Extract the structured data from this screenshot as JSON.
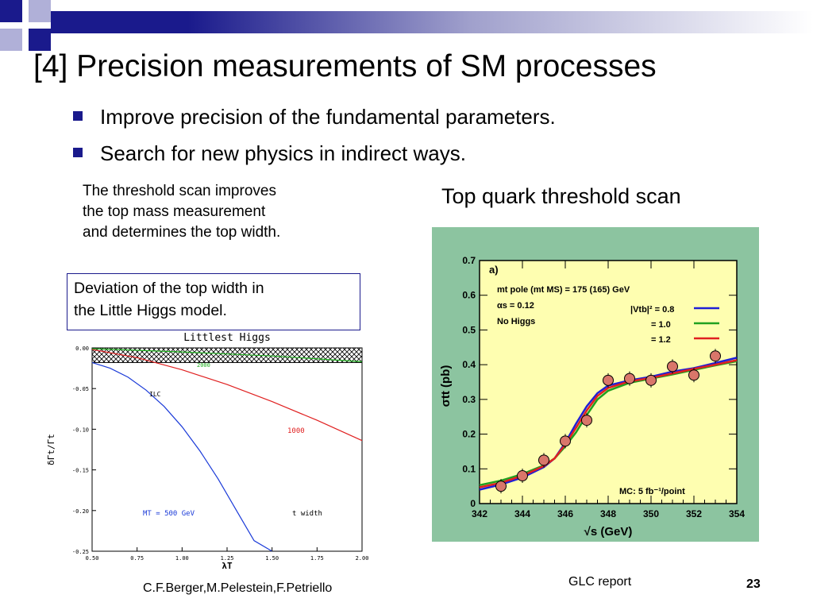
{
  "slide": {
    "title": "[4] Precision measurements of SM processes",
    "bullets": [
      "Improve precision of the fundamental parameters.",
      "Search for new physics in indirect ways."
    ],
    "description_lines": [
      "The threshold scan improves",
      "the top mass measurement",
      "and determines the top width."
    ],
    "box_lines": [
      "Deviation of the top width in",
      "the Little Higgs model."
    ],
    "right_plot_title": "Top quark threshold scan",
    "footer": {
      "authors": "C.F.Berger,M.Pelestein,F.Petriello",
      "report": "GLC report",
      "page": "23"
    },
    "colors": {
      "accent": "#1a1a8c",
      "plot_bg": "#fefeb0",
      "plot_frame": "#8cc4a0"
    }
  },
  "chart_data": [
    {
      "type": "line",
      "title": "Littlest Higgs",
      "ylabel": "δΓt/Γt",
      "xlabel": "λT",
      "xlim": [
        0.5,
        2.0
      ],
      "ylim": [
        -0.25,
        0.0
      ],
      "x_ticks": [
        "0.50",
        "0.75",
        "1.00",
        "1.25",
        "1.50",
        "1.75",
        "2.00"
      ],
      "y_ticks": [
        "0.00",
        "-0.05",
        "-0.10",
        "-0.15",
        "-0.20",
        "-0.25"
      ],
      "annotations": {
        "ilc": "ILC",
        "mass": "MT = 500 GeV",
        "width": "t width",
        "red": "1000",
        "green": "2000"
      },
      "hatched_band": [
        -0.018,
        0.0
      ],
      "series": [
        {
          "color": "#1a3ad8",
          "x": [
            0.5,
            0.6,
            0.7,
            0.8,
            0.9,
            1.0,
            1.1,
            1.2,
            1.3,
            1.4,
            1.5
          ],
          "y": [
            -0.018,
            -0.025,
            -0.036,
            -0.052,
            -0.072,
            -0.097,
            -0.127,
            -0.161,
            -0.199,
            -0.237,
            -0.262
          ]
        },
        {
          "color": "#e02020",
          "x": [
            0.5,
            0.75,
            1.0,
            1.25,
            1.5,
            1.75,
            2.0
          ],
          "y": [
            -0.002,
            -0.012,
            -0.027,
            -0.045,
            -0.066,
            -0.089,
            -0.114
          ]
        },
        {
          "color": "#20b020",
          "x": [
            0.5,
            1.0,
            1.5,
            2.0
          ],
          "y": [
            -0.001,
            -0.005,
            -0.01,
            -0.017
          ]
        }
      ]
    },
    {
      "type": "line",
      "title": "",
      "xlabel": "√s (GeV)",
      "ylabel": "σtt (pb)",
      "xlim": [
        342,
        354
      ],
      "ylim": [
        0,
        0.7
      ],
      "x_ticks": [
        "342",
        "344",
        "346",
        "348",
        "350",
        "352",
        "354"
      ],
      "y_ticks": [
        "0",
        "0.1",
        "0.2",
        "0.3",
        "0.4",
        "0.5",
        "0.6",
        "0.7"
      ],
      "panel_label": "a)",
      "text_lines": [
        "mt pole (mt MS) = 175 (165) GeV",
        "αs = 0.12",
        "No Higgs"
      ],
      "legend": {
        "header": "|Vtb|² = 0.8",
        "entries": [
          "= 1.0",
          "= 1.2"
        ]
      },
      "mc_label": "MC: 5 fb⁻¹/point",
      "series": [
        {
          "name": "|Vtb|² = 0.8",
          "color": "#1f1fd6",
          "x": [
            342,
            343,
            344,
            345,
            345.5,
            346,
            346.5,
            347,
            347.5,
            348,
            349,
            350,
            351,
            352,
            353,
            354
          ],
          "y": [
            0.04,
            0.055,
            0.075,
            0.105,
            0.13,
            0.175,
            0.23,
            0.28,
            0.318,
            0.34,
            0.355,
            0.365,
            0.38,
            0.39,
            0.405,
            0.42
          ]
        },
        {
          "name": "= 1.0",
          "color": "#20a020",
          "x": [
            342,
            343,
            344,
            345,
            345.5,
            346,
            346.5,
            347,
            347.5,
            348,
            349,
            350,
            351,
            352,
            353,
            354
          ],
          "y": [
            0.053,
            0.066,
            0.085,
            0.11,
            0.13,
            0.165,
            0.205,
            0.255,
            0.3,
            0.325,
            0.348,
            0.36,
            0.372,
            0.385,
            0.398,
            0.41
          ]
        },
        {
          "name": "= 1.2",
          "color": "#e02020",
          "x": [
            342,
            343,
            344,
            345,
            345.5,
            346,
            346.5,
            347,
            347.5,
            348,
            349,
            350,
            351,
            352,
            353,
            354
          ],
          "y": [
            0.047,
            0.06,
            0.08,
            0.108,
            0.13,
            0.17,
            0.218,
            0.268,
            0.31,
            0.333,
            0.352,
            0.362,
            0.375,
            0.388,
            0.4,
            0.413
          ]
        }
      ],
      "points": {
        "x": [
          343,
          344,
          345,
          346,
          347,
          348,
          349,
          350,
          351,
          352,
          353
        ],
        "y": [
          0.05,
          0.08,
          0.125,
          0.18,
          0.24,
          0.355,
          0.36,
          0.355,
          0.395,
          0.37,
          0.425
        ]
      }
    }
  ]
}
